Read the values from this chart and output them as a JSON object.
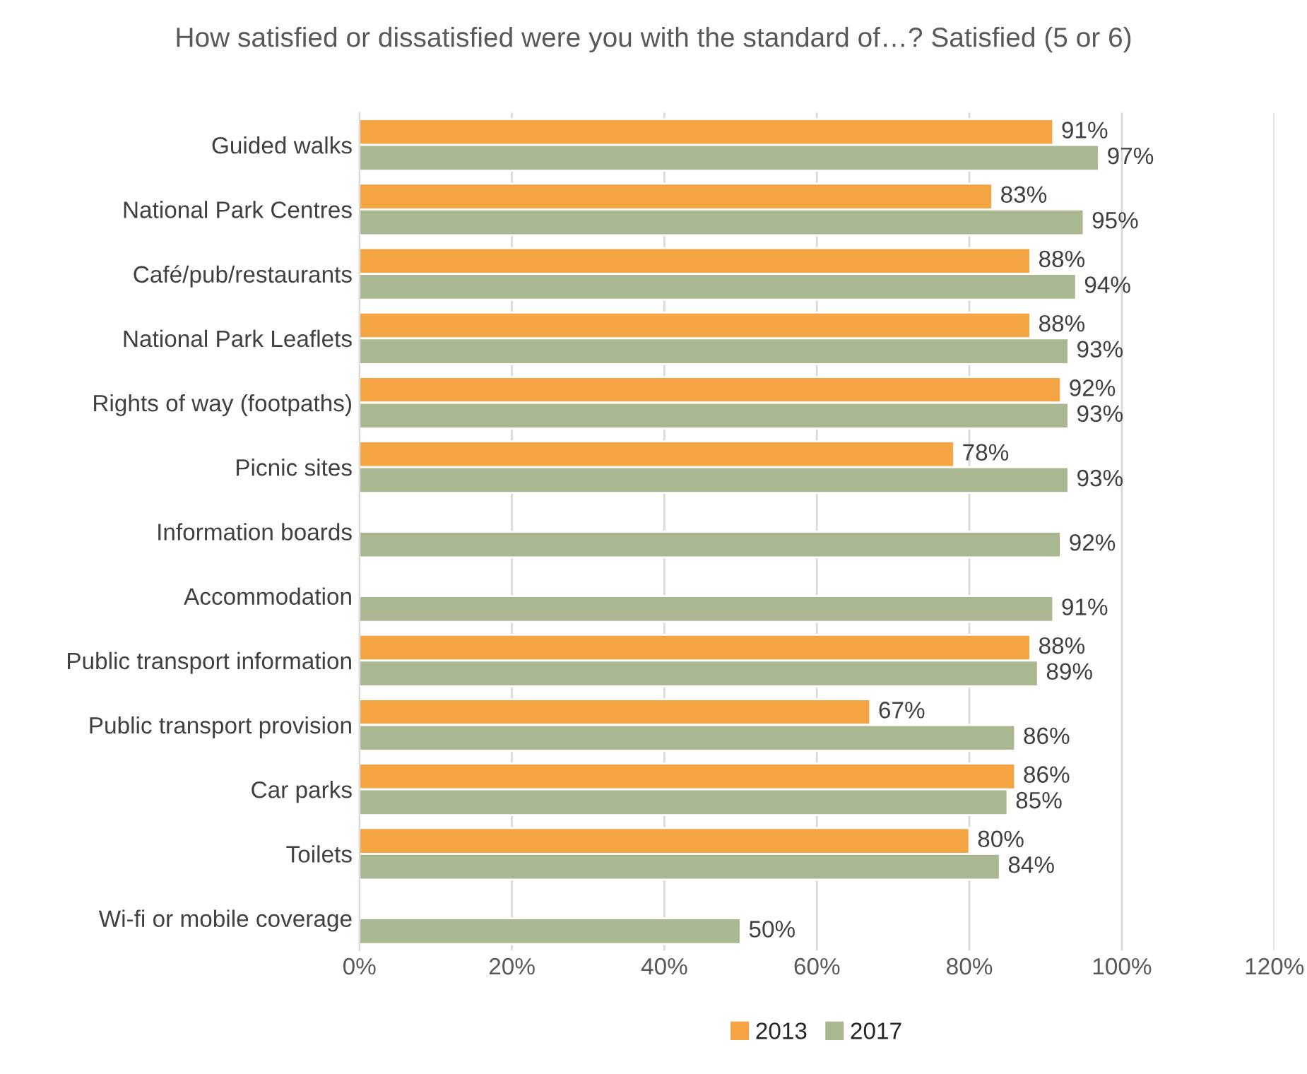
{
  "chart_data": {
    "type": "bar",
    "orientation": "horizontal",
    "title": "How satisfied or dissatisfied were you with the standard of…? Satisfied (5 or 6)",
    "categories": [
      "Guided walks",
      "National Park Centres",
      "Café/pub/restaurants",
      "National Park Leaflets",
      "Rights of way (footpaths)",
      "Picnic sites",
      "Information boards",
      "Accommodation",
      "Public transport information",
      "Public transport provision",
      "Car parks",
      "Toilets",
      "Wi-fi or mobile coverage"
    ],
    "series": [
      {
        "name": "2013",
        "color": "#f4a442",
        "values": [
          91,
          83,
          88,
          88,
          92,
          78,
          null,
          null,
          88,
          67,
          86,
          80,
          null
        ],
        "value_labels": [
          "91%",
          "83%",
          "88%",
          "88%",
          "92%",
          "78%",
          null,
          null,
          "88%",
          "67%",
          "86%",
          "80%",
          null
        ]
      },
      {
        "name": "2017",
        "color": "#a9b891",
        "values": [
          97,
          95,
          94,
          93,
          93,
          93,
          92,
          91,
          89,
          86,
          85,
          84,
          50
        ],
        "value_labels": [
          "97%",
          "95%",
          "94%",
          "93%",
          "93%",
          "93%",
          "92%",
          "91%",
          "89%",
          "86%",
          "85%",
          "84%",
          "50%"
        ]
      }
    ],
    "xlim": [
      0,
      120
    ],
    "xticks": [
      {
        "value": 0,
        "label": "0%"
      },
      {
        "value": 20,
        "label": "20%"
      },
      {
        "value": 40,
        "label": "40%"
      },
      {
        "value": 60,
        "label": "60%"
      },
      {
        "value": 80,
        "label": "80%"
      },
      {
        "value": 100,
        "label": "100%"
      },
      {
        "value": 120,
        "label": "120%"
      }
    ],
    "grid": "x",
    "legend": "bottom"
  }
}
